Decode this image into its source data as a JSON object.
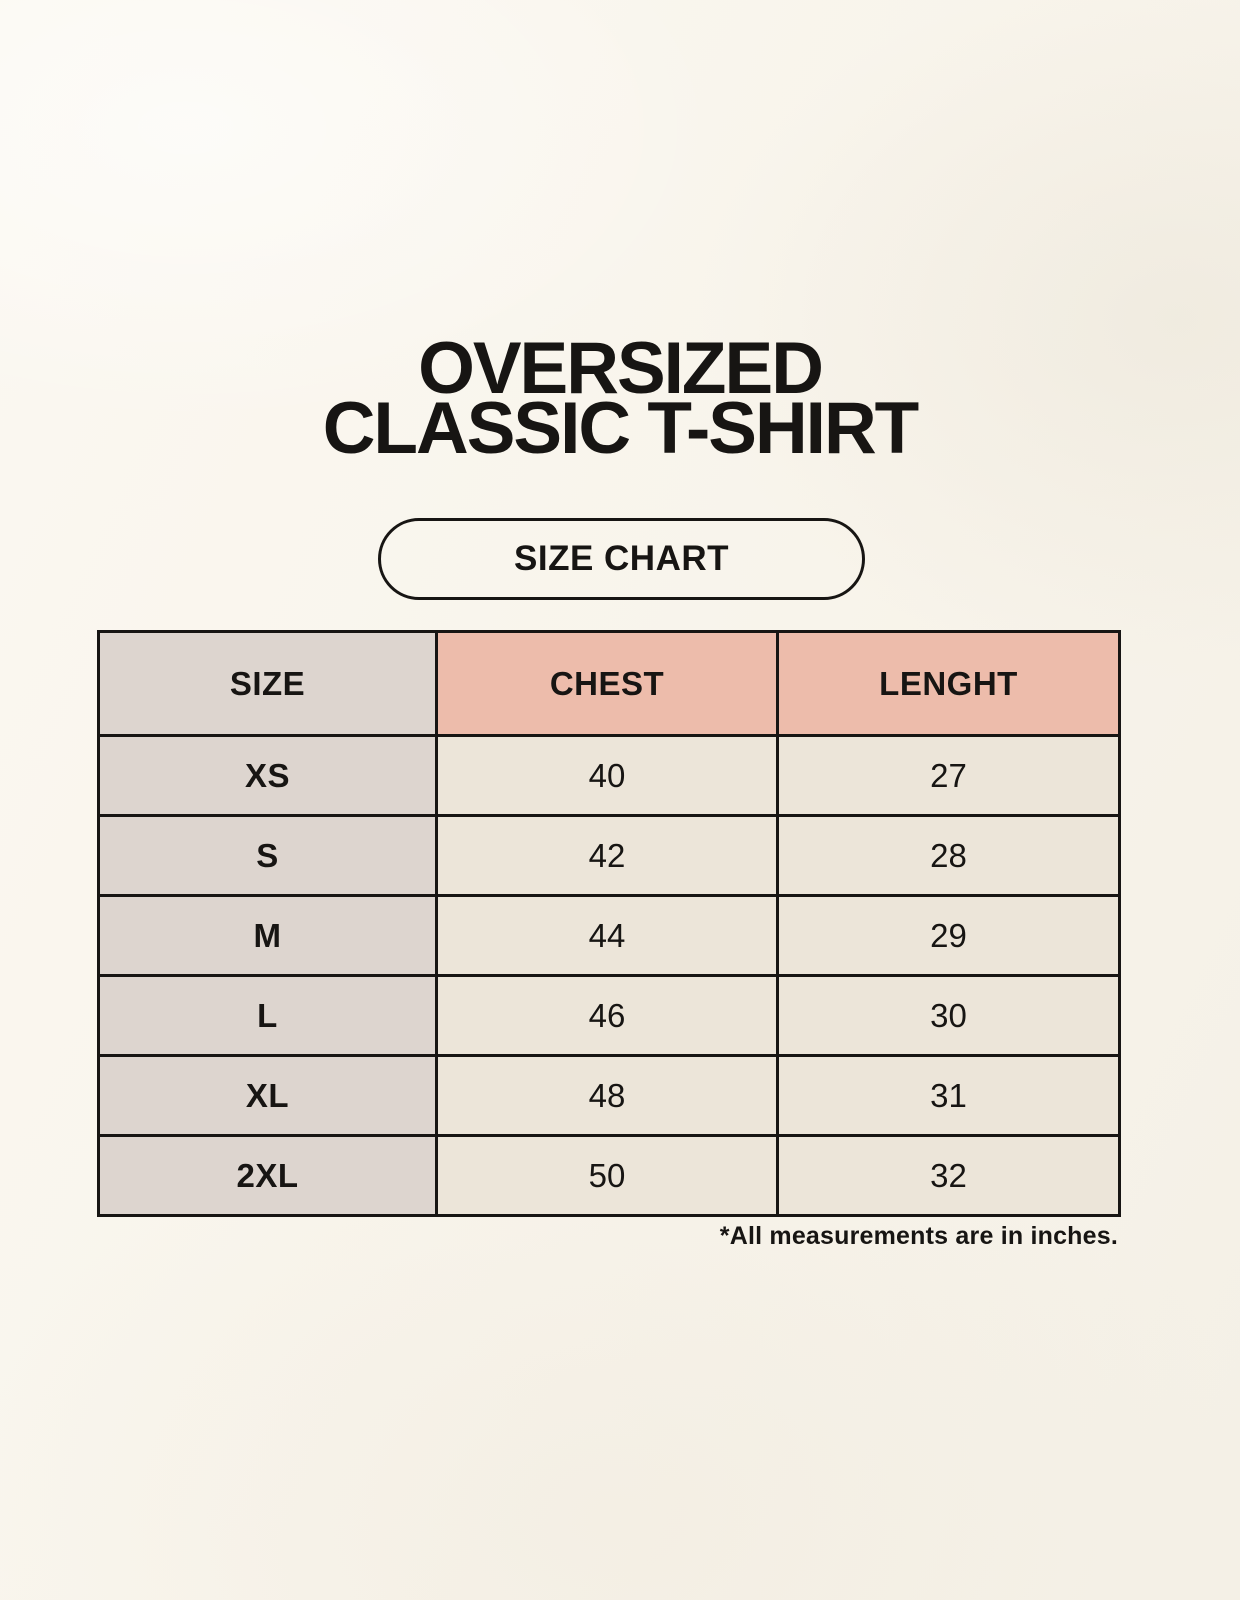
{
  "page": {
    "title_line1": "OVERSIZED",
    "title_line2": "CLASSIC T-SHIRT",
    "badge_label": "SIZE CHART",
    "footnote": "*All measurements are in inches."
  },
  "table": {
    "columns": [
      "SIZE",
      "CHEST",
      "LENGHT"
    ],
    "rows": [
      {
        "size": "XS",
        "chest": "40",
        "length": "27"
      },
      {
        "size": "S",
        "chest": "42",
        "length": "28"
      },
      {
        "size": "M",
        "chest": "44",
        "length": "29"
      },
      {
        "size": "L",
        "chest": "46",
        "length": "30"
      },
      {
        "size": "XL",
        "chest": "48",
        "length": "31"
      },
      {
        "size": "2XL",
        "chest": "50",
        "length": "32"
      }
    ],
    "units": "inches"
  },
  "colors": {
    "background": "#faf6ee",
    "header_accent": "#edbcab",
    "size_column": "#ddd5cf",
    "data_cell": "#ece5d9",
    "ink": "#171513"
  }
}
